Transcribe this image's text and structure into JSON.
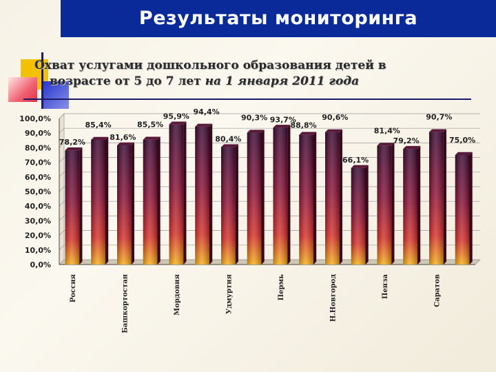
{
  "slide": {
    "title": "Результаты мониторинга"
  },
  "chart_data": {
    "type": "bar",
    "title_line1": "Охват услугами дошкольного образования детей в",
    "title_line2_plain": "возрасте от 5 до 7 лет ",
    "title_line2_emph": "на 1 января 2011 года",
    "ylim": [
      0,
      100
    ],
    "yticks": [
      "0,0%",
      "10,0%",
      "20,0%",
      "30,0%",
      "40,0%",
      "50,0%",
      "60,0%",
      "70,0%",
      "80,0%",
      "90,0%",
      "100,0%"
    ],
    "grid": true,
    "values": [
      78.2,
      85.4,
      81.6,
      85.5,
      95.9,
      94.4,
      80.4,
      90.3,
      93.7,
      88.8,
      90.6,
      66.1,
      81.4,
      79.2,
      90.7,
      75.0
    ],
    "data_labels": [
      "78,2%",
      "85,4%",
      "81,6%",
      "85,5%",
      "95,9%",
      "94,4%",
      "80,4%",
      "90,3%",
      "93,7%",
      "88,8%",
      "90,6%",
      "66,1%",
      "81,4%",
      "79,2%",
      "90,7%",
      "75,0%"
    ],
    "categories": [
      "Россия",
      "",
      "Башкортостан",
      "",
      "Мордовия",
      "",
      "Удмуртия",
      "",
      "Пермь",
      "",
      "Н.Новгород",
      "",
      "Пенза",
      "",
      "Саратов",
      ""
    ],
    "colors": {
      "bar_top": "#4a0a2a",
      "bar_mid": "#c0203a",
      "bar_bottom": "#f5a020",
      "bar_side": "#5a1020"
    }
  }
}
